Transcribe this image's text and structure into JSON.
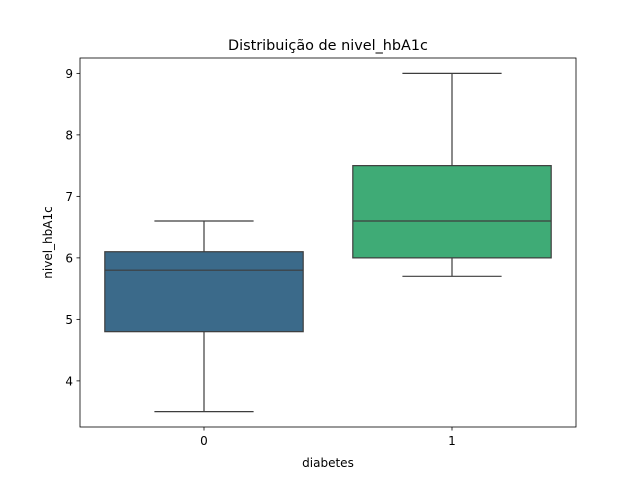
{
  "chart_data": {
    "type": "box",
    "title": "Distribuição de nivel_hbA1c",
    "xlabel": "diabetes",
    "ylabel": "nivel_hbA1c",
    "categories": [
      "0",
      "1"
    ],
    "boxes": [
      {
        "category": "0",
        "whisker_low": 3.5,
        "q1": 4.8,
        "median": 5.8,
        "q3": 6.1,
        "whisker_high": 6.6,
        "color": "#3b6a8a"
      },
      {
        "category": "1",
        "whisker_low": 5.7,
        "q1": 6.0,
        "median": 6.6,
        "q3": 7.5,
        "whisker_high": 9.0,
        "color": "#3fab76"
      }
    ],
    "ylim": [
      3.25,
      9.25
    ],
    "yticks": [
      4,
      5,
      6,
      7,
      8,
      9
    ],
    "grid": false,
    "legend": "none"
  }
}
